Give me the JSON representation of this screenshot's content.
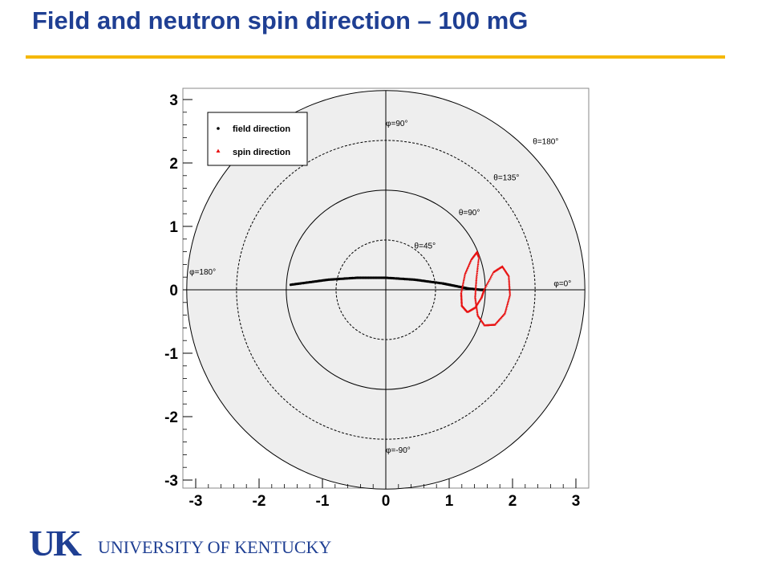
{
  "slide": {
    "title": "Field and neutron spin direction – 100 mG"
  },
  "logo": {
    "mark": "UK",
    "name": "UNIVERSITY OF KENTUCKY"
  },
  "colors": {
    "title": "#1f3f93",
    "rule": "#f5b800",
    "disk_fill": "#eeeeee",
    "field_marker": "#000000",
    "spin_marker": "#e81010"
  },
  "chart_data": {
    "type": "scatter",
    "projection": "polar",
    "xlim": [
      -3.1,
      3.1
    ],
    "ylim": [
      -3.1,
      3.1
    ],
    "x_ticks": [
      "-3",
      "-2",
      "-1",
      "0",
      "1",
      "2",
      "3"
    ],
    "y_ticks": [
      "3",
      "2",
      "1",
      "0",
      "-1",
      "-2",
      "-3"
    ],
    "rings": [
      {
        "radius": 0.785,
        "style": "dashed",
        "label": "θ=45°"
      },
      {
        "radius": 1.571,
        "style": "solid",
        "label": "θ=90°"
      },
      {
        "radius": 2.356,
        "style": "dashed",
        "label": "θ=135°"
      },
      {
        "radius": 3.142,
        "style": "solid",
        "label": "θ=180°"
      }
    ],
    "phi_labels": [
      "φ=90°",
      "φ=180°",
      "φ=0°",
      "φ=-90°"
    ],
    "legend": {
      "placement": "top-left",
      "entries": [
        "field direction",
        "spin direction"
      ]
    },
    "series": [
      {
        "name": "field direction",
        "marker": "dot",
        "x": [
          -1.5,
          -1.35,
          -1.2,
          -1.05,
          -0.9,
          -0.75,
          -0.6,
          -0.45,
          -0.3,
          -0.15,
          0.0,
          0.15,
          0.3,
          0.45,
          0.6,
          0.75,
          0.9,
          1.0,
          1.1,
          1.2,
          1.3,
          1.4,
          1.5,
          1.55
        ],
        "y": [
          0.08,
          0.1,
          0.12,
          0.14,
          0.16,
          0.17,
          0.18,
          0.19,
          0.19,
          0.19,
          0.19,
          0.18,
          0.17,
          0.16,
          0.14,
          0.12,
          0.1,
          0.08,
          0.06,
          0.04,
          0.02,
          0.01,
          0.0,
          0.0
        ]
      },
      {
        "name": "spin direction",
        "marker": "triangle",
        "x": [
          1.55,
          1.7,
          1.84,
          1.94,
          1.96,
          1.88,
          1.72,
          1.56,
          1.45,
          1.41,
          1.43,
          1.47,
          1.44,
          1.35,
          1.25,
          1.19,
          1.2,
          1.29,
          1.41,
          1.51,
          1.55
        ],
        "y": [
          0.0,
          0.28,
          0.37,
          0.22,
          -0.08,
          -0.37,
          -0.55,
          -0.56,
          -0.4,
          -0.12,
          0.18,
          0.52,
          0.6,
          0.48,
          0.25,
          -0.05,
          -0.25,
          -0.35,
          -0.28,
          -0.12,
          0.0
        ]
      }
    ]
  }
}
